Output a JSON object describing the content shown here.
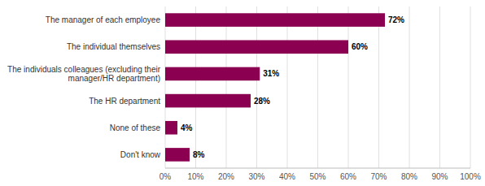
{
  "chart_data": {
    "type": "bar",
    "orientation": "horizontal",
    "categories": [
      "The manager of each employee",
      "The individual themselves",
      "The individuals colleagues (excluding their\nmanager/HR department)",
      "The HR department",
      "None of these",
      "Don't know"
    ],
    "values": [
      72,
      60,
      31,
      28,
      4,
      8
    ],
    "value_labels": [
      "72%",
      "60%",
      "31%",
      "28%",
      "4%",
      "8%"
    ],
    "data_labels": true,
    "color": "#8B0050",
    "xlim": [
      0,
      100
    ],
    "xticks": [
      {
        "value": 0,
        "label": "0%"
      },
      {
        "value": 10,
        "label": "10%"
      },
      {
        "value": 20,
        "label": "20%"
      },
      {
        "value": 30,
        "label": "30%"
      },
      {
        "value": 40,
        "label": "40%"
      },
      {
        "value": 50,
        "label": "50%"
      },
      {
        "value": 60,
        "label": "60%"
      },
      {
        "value": 70,
        "label": "70%"
      },
      {
        "value": 80,
        "label": "80%"
      },
      {
        "value": 90,
        "label": "90%"
      },
      {
        "value": 100,
        "label": "100%"
      }
    ],
    "grid": true
  }
}
